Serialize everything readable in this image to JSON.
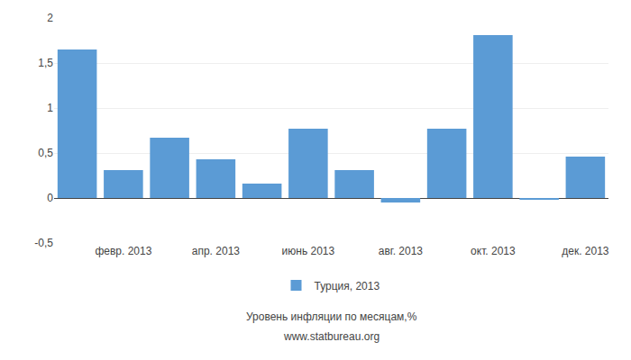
{
  "chart_data": {
    "type": "bar",
    "categories": [
      null,
      "февр. 2013",
      null,
      "апр. 2013",
      null,
      "июнь 2013",
      null,
      "авг. 2013",
      null,
      "окт. 2013",
      null,
      "дек. 2013"
    ],
    "series": [
      {
        "name": "Турция, 2013",
        "color": "#5b9bd5",
        "values": [
          1.65,
          0.31,
          0.67,
          0.43,
          0.16,
          0.77,
          0.31,
          -0.05,
          0.77,
          1.81,
          -0.02,
          0.46
        ]
      }
    ],
    "ylim": [
      -0.5,
      2.0
    ],
    "yticks": [
      {
        "value": -0.5,
        "label": "-0,5"
      },
      0,
      {
        "value": 0.5,
        "label": "0,5"
      },
      1,
      {
        "value": 1.5,
        "label": "1,5"
      },
      2
    ],
    "grid": true,
    "legend": "bottom",
    "xlabel": "Уровень инфляции по месяцам,%",
    "annotations": [
      "www.statbureau.org"
    ]
  }
}
